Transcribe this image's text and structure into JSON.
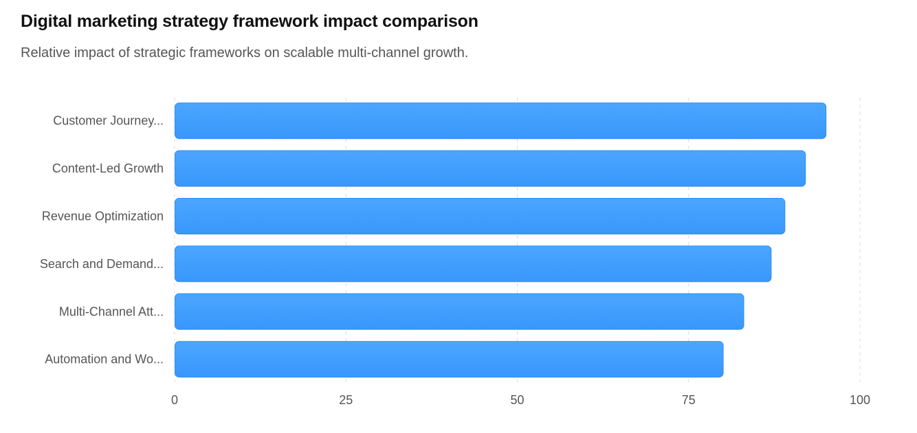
{
  "title": "Digital marketing strategy framework impact comparison",
  "subtitle": "Relative impact of strategic frameworks on scalable multi-channel growth.",
  "colors": {
    "bar_top": "#4ba6ff",
    "bar_bottom": "#3897fb",
    "bar_stroke": "#2f8cf0"
  },
  "chart_data": {
    "type": "bar",
    "orientation": "horizontal",
    "categories": [
      "Customer Journey...",
      "Content-Led Growth",
      "Revenue Optimization",
      "Search and Demand...",
      "Multi-Channel Att...",
      "Automation and Wo..."
    ],
    "values": [
      95,
      92,
      89,
      87,
      83,
      80
    ],
    "xlim": [
      0,
      100
    ],
    "xticks": [
      0,
      25,
      50,
      75,
      100
    ],
    "grid": "vertical dashed"
  }
}
